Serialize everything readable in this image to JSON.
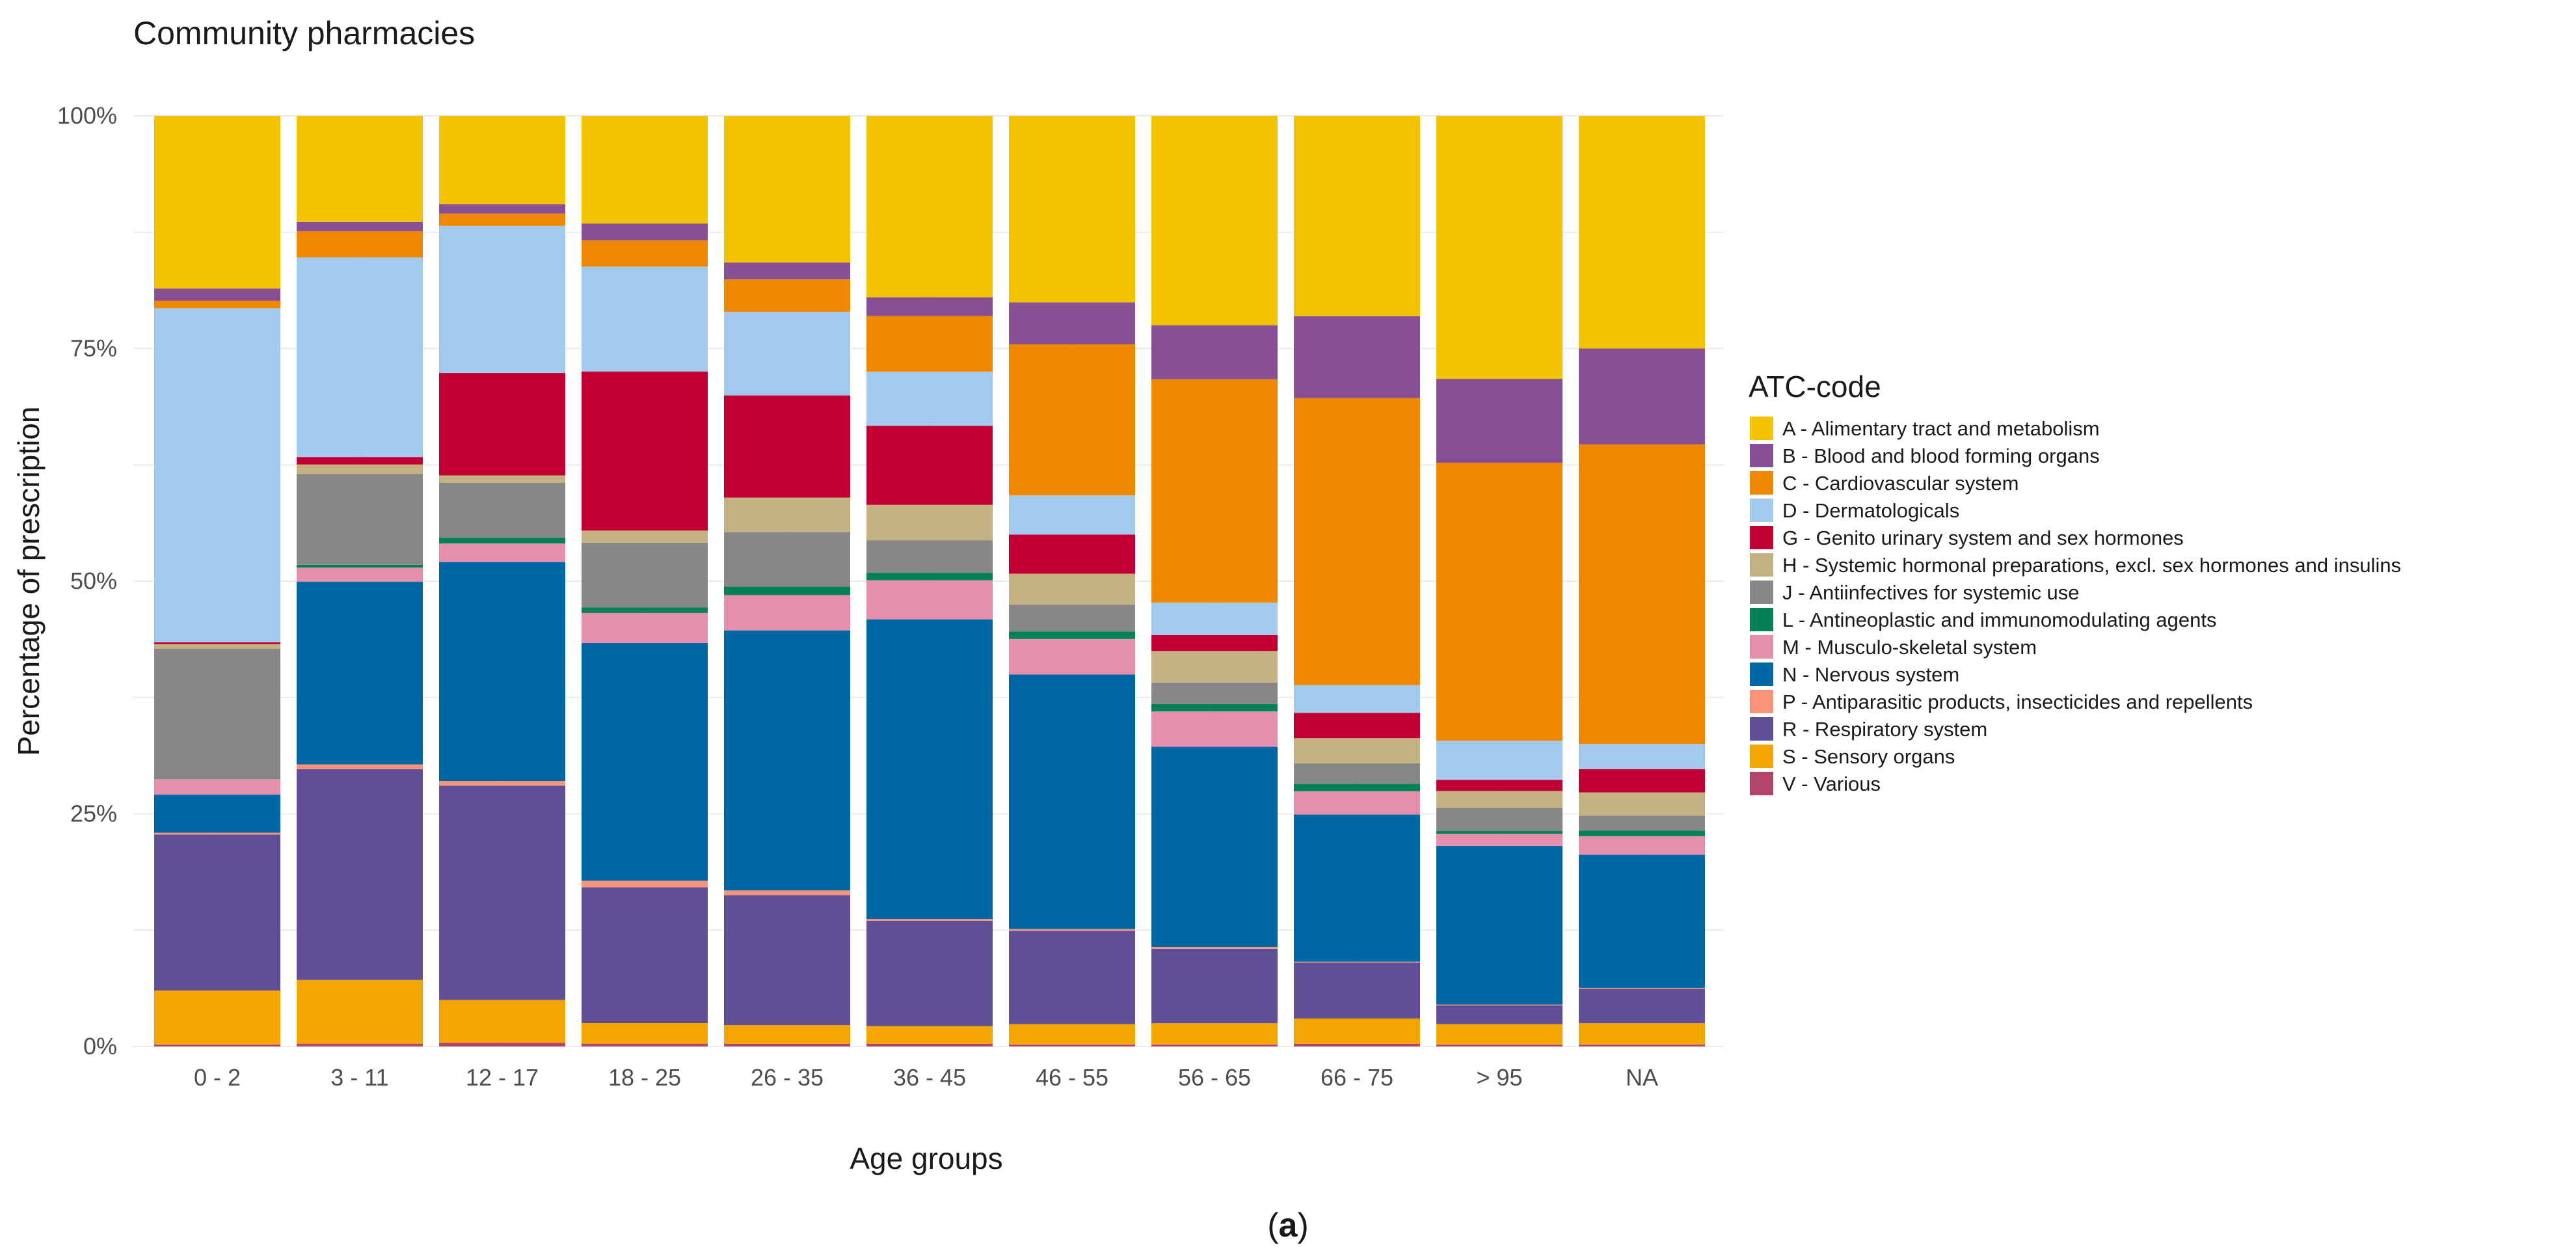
{
  "chart_data": {
    "type": "bar",
    "stacked": true,
    "percent": true,
    "title": "Community pharmacies",
    "xlabel": "Age groups",
    "ylabel": "Percentage of prescription",
    "ylim": [
      0,
      100
    ],
    "yticks": [
      0,
      25,
      50,
      75,
      100
    ],
    "ytick_labels": [
      "0%",
      "25%",
      "50%",
      "75%",
      "100%"
    ],
    "grid": true,
    "legend_position": "right",
    "legend_title": "ATC-code",
    "categories": [
      "0 - 2",
      "3 - 11",
      "12 - 17",
      "18 - 25",
      "26 - 35",
      "36 - 45",
      "46 - 55",
      "56 - 65",
      "66 - 75",
      "> 95",
      "NA"
    ],
    "series": [
      {
        "code": "A",
        "name": "A - Alimentary tract and metabolism",
        "color": "#F2C300",
        "values": [
          18.5,
          11.3,
          9.5,
          11.5,
          15.8,
          19.5,
          20.0,
          22.5,
          21.5,
          28.2,
          25.0
        ]
      },
      {
        "code": "B",
        "name": "B - Blood and blood forming organs",
        "color": "#874F94",
        "values": [
          1.3,
          1.0,
          1.0,
          1.8,
          1.8,
          2.0,
          4.5,
          5.8,
          8.8,
          9.0,
          10.3
        ]
      },
      {
        "code": "C",
        "name": "C - Cardiovascular system",
        "color": "#F08700",
        "values": [
          0.8,
          2.8,
          1.3,
          2.8,
          3.5,
          6.0,
          16.2,
          24.0,
          30.8,
          29.8,
          32.2
        ]
      },
      {
        "code": "D",
        "name": "D - Dermatologicals",
        "color": "#A1CAED",
        "values": [
          35.8,
          21.3,
          15.8,
          11.2,
          9.0,
          5.8,
          4.2,
          3.5,
          3.0,
          4.2,
          2.7
        ]
      },
      {
        "code": "G",
        "name": "G - Genito urinary system and sex hormones",
        "color": "#C00032",
        "values": [
          0.2,
          0.8,
          11.0,
          17.0,
          11.0,
          8.5,
          4.2,
          1.7,
          2.7,
          1.2,
          2.5
        ]
      },
      {
        "code": "H",
        "name": "H - Systemic hormonal preparations, excl. sex hormones and insulins",
        "color": "#C3B382",
        "values": [
          0.5,
          1.0,
          0.8,
          1.3,
          3.7,
          3.8,
          3.3,
          3.4,
          2.7,
          1.8,
          2.5
        ]
      },
      {
        "code": "J",
        "name": "J - Antiinfectives for systemic use",
        "color": "#878787",
        "values": [
          13.8,
          9.7,
          5.9,
          6.9,
          5.9,
          3.5,
          2.9,
          2.3,
          2.2,
          2.5,
          1.6
        ]
      },
      {
        "code": "L",
        "name": "L - Antineoplastic and immunomodulating agents",
        "color": "#008254",
        "values": [
          0.1,
          0.3,
          0.6,
          0.6,
          0.9,
          0.8,
          0.8,
          0.8,
          0.8,
          0.3,
          0.6
        ]
      },
      {
        "code": "M",
        "name": "M - Musculo-skeletal system",
        "color": "#E68FAC",
        "values": [
          1.7,
          1.5,
          2.0,
          3.2,
          3.8,
          4.2,
          3.8,
          3.8,
          2.5,
          1.3,
          2.0
        ]
      },
      {
        "code": "N",
        "name": "N - Nervous system",
        "color": "#0067A5",
        "values": [
          4.1,
          19.5,
          23.5,
          25.4,
          28.0,
          32.2,
          27.3,
          21.5,
          15.8,
          17.0,
          14.3
        ]
      },
      {
        "code": "P",
        "name": "P - Antiparasitic products, insecticides and repellents",
        "color": "#F99379",
        "values": [
          0.2,
          0.5,
          0.5,
          0.7,
          0.5,
          0.2,
          0.2,
          0.2,
          0.1,
          0.1,
          0.1
        ]
      },
      {
        "code": "R",
        "name": "R - Respiratory system",
        "color": "#604E97",
        "values": [
          16.7,
          22.5,
          23.0,
          14.5,
          14.0,
          11.3,
          10.0,
          8.0,
          6.0,
          2.0,
          3.7
        ]
      },
      {
        "code": "S",
        "name": "S - Sensory organs",
        "color": "#F3A500",
        "values": [
          5.8,
          6.8,
          4.6,
          2.2,
          2.0,
          1.9,
          2.2,
          2.3,
          2.7,
          2.2,
          2.3
        ]
      },
      {
        "code": "V",
        "name": "V - Various",
        "color": "#B3446C",
        "values": [
          0.2,
          0.3,
          0.4,
          0.3,
          0.3,
          0.3,
          0.2,
          0.2,
          0.3,
          0.2,
          0.2
        ]
      }
    ]
  },
  "caption": {
    "open": "(",
    "letter": "a",
    "close": ")"
  }
}
